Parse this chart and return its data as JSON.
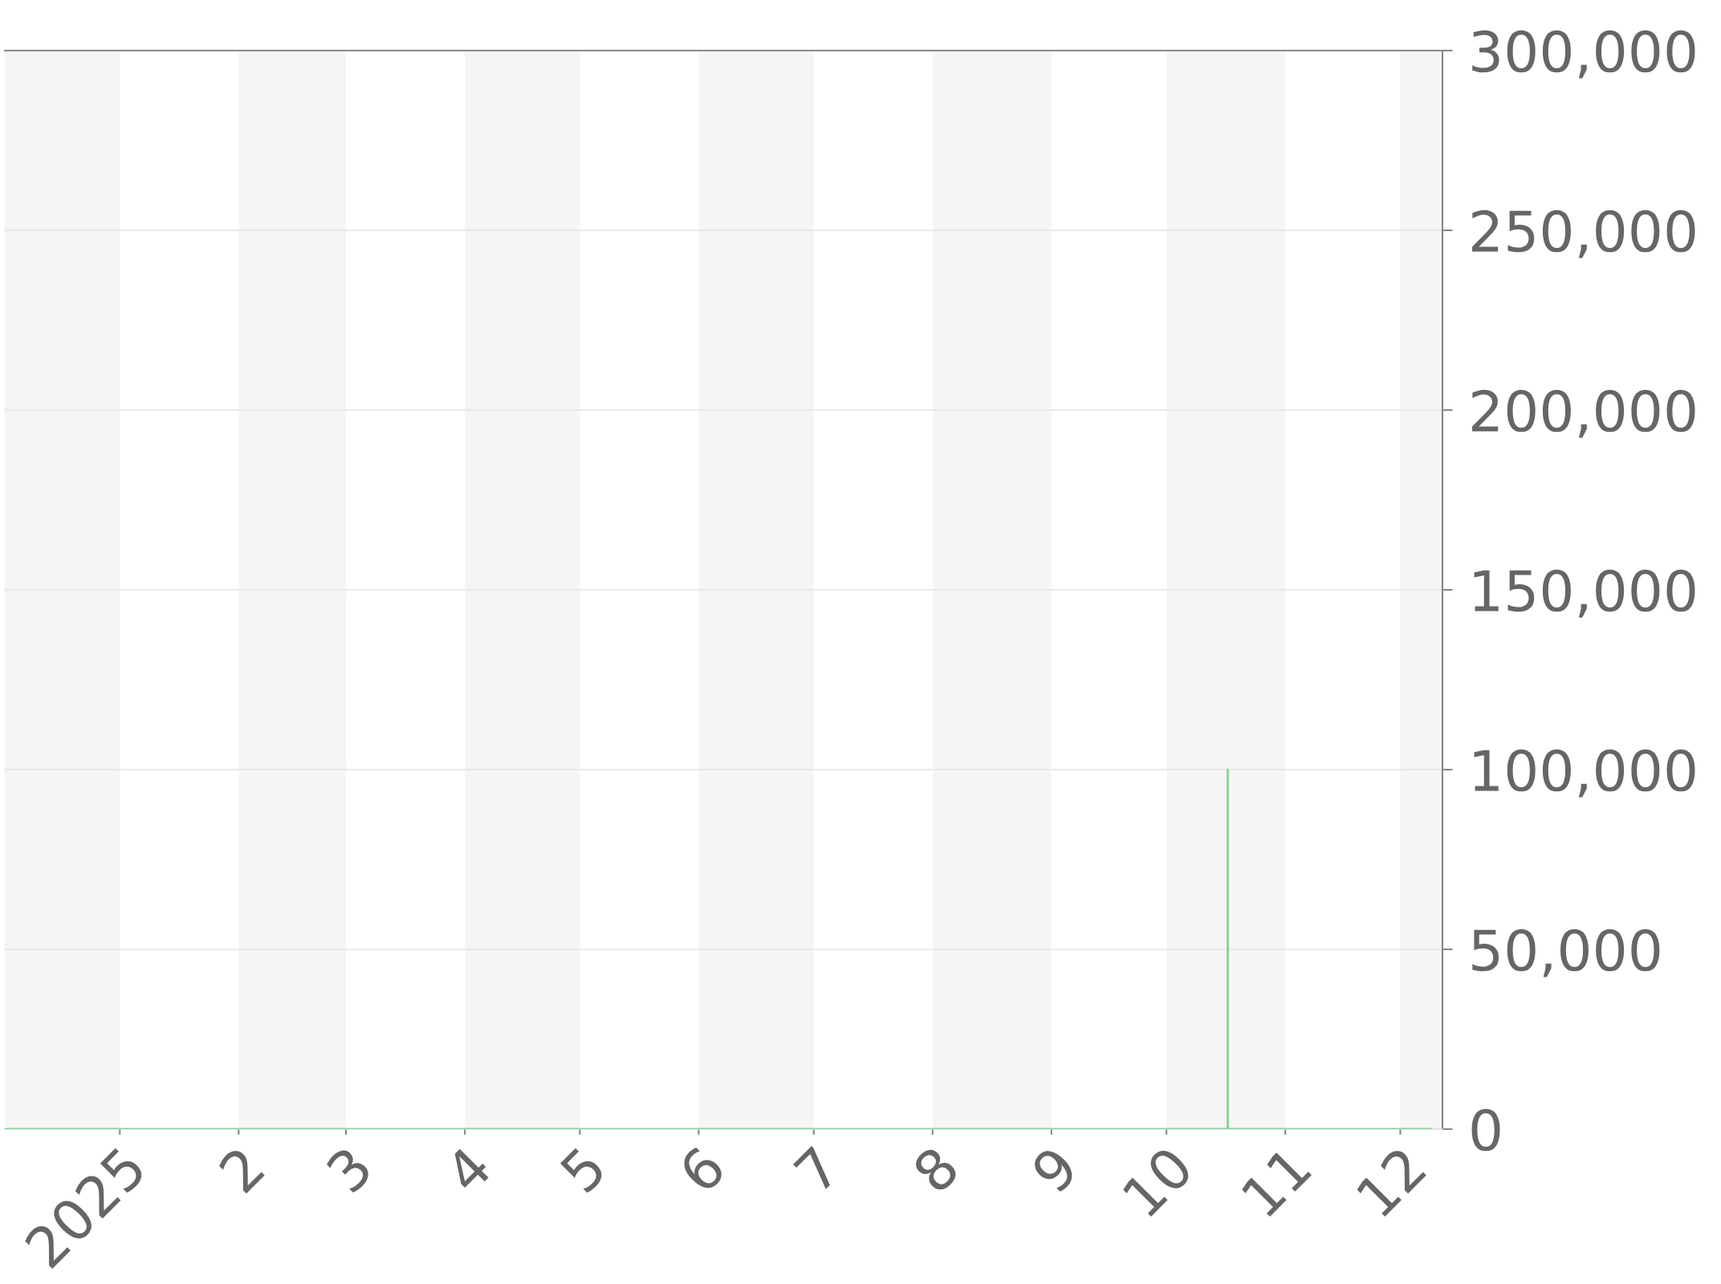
{
  "chart_data": {
    "type": "line",
    "x": [
      "2024-12-02",
      "2025-10-17",
      "2025-10-17",
      "2025-10-17",
      "2025-12-09"
    ],
    "series": [
      {
        "color": "#8fd19e",
        "values": [
          0,
          0,
          100000,
          0,
          0
        ]
      }
    ],
    "xlim": [
      "2024-12-02",
      "2025-12-12"
    ],
    "xticks": [
      {
        "value": "2025-01-01",
        "label": "2025"
      },
      {
        "value": "2025-02-01",
        "label": "2"
      },
      {
        "value": "2025-03-01",
        "label": "3"
      },
      {
        "value": "2025-04-01",
        "label": "4"
      },
      {
        "value": "2025-05-01",
        "label": "5"
      },
      {
        "value": "2025-06-01",
        "label": "6"
      },
      {
        "value": "2025-07-01",
        "label": "7"
      },
      {
        "value": "2025-08-01",
        "label": "8"
      },
      {
        "value": "2025-09-01",
        "label": "9"
      },
      {
        "value": "2025-10-01",
        "label": "10"
      },
      {
        "value": "2025-11-01",
        "label": "11"
      },
      {
        "value": "2025-12-01",
        "label": "12"
      }
    ],
    "ylim": [
      0,
      300000
    ],
    "yticks": [
      0,
      {
        "value": 50000,
        "label": "50,000"
      },
      {
        "value": 100000,
        "label": "100,000"
      },
      {
        "value": 150000,
        "label": "150,000"
      },
      {
        "value": 200000,
        "label": "200,000"
      },
      {
        "value": 250000,
        "label": "250,000"
      },
      {
        "value": 300000,
        "label": "300,000"
      }
    ],
    "grid": "y",
    "bands": [
      {
        "axis": "x",
        "from": "2024-12-02",
        "to": "2025-01-01",
        "color": "#f5f5f5"
      },
      {
        "axis": "x",
        "from": "2025-02-01",
        "to": "2025-03-01",
        "color": "#f5f5f5"
      },
      {
        "axis": "x",
        "from": "2025-04-01",
        "to": "2025-05-01",
        "color": "#f5f5f5"
      },
      {
        "axis": "x",
        "from": "2025-06-01",
        "to": "2025-07-01",
        "color": "#f5f5f5"
      },
      {
        "axis": "x",
        "from": "2025-08-01",
        "to": "2025-09-01",
        "color": "#f5f5f5"
      },
      {
        "axis": "x",
        "from": "2025-10-01",
        "to": "2025-11-01",
        "color": "#f5f5f5"
      },
      {
        "axis": "x",
        "from": "2025-12-01",
        "to": "2025-12-12",
        "color": "#f5f5f5"
      }
    ]
  }
}
